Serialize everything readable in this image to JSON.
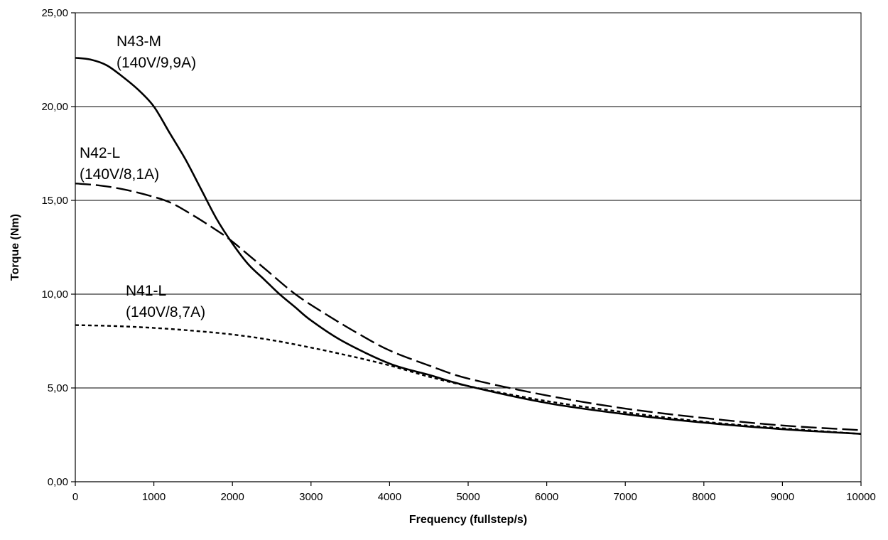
{
  "chart_data": {
    "type": "line",
    "title": "",
    "xlabel": "Frequency (fullstep/s)",
    "ylabel": "Torque (Nm)",
    "xlim": [
      0,
      10000
    ],
    "ylim": [
      0,
      25
    ],
    "x_ticks": [
      0,
      1000,
      2000,
      3000,
      4000,
      5000,
      6000,
      7000,
      8000,
      9000,
      10000
    ],
    "x_tick_labels": [
      "0",
      "1000",
      "2000",
      "3000",
      "4000",
      "5000",
      "6000",
      "7000",
      "8000",
      "9000",
      "10000"
    ],
    "y_ticks": [
      0,
      5,
      10,
      15,
      20,
      25
    ],
    "y_tick_labels": [
      "0,00",
      "5,00",
      "10,00",
      "15,00",
      "20,00",
      "25,00"
    ],
    "grid": "horizontal",
    "legend": "inline labels",
    "series": [
      {
        "id": "n43m",
        "label_lines": [
          "N43-M",
          "(140V/9,9A)"
        ],
        "style": "solid",
        "color": "#000000",
        "x": [
          0,
          200,
          400,
          600,
          800,
          1000,
          1200,
          1400,
          1600,
          1800,
          2000,
          2200,
          2400,
          2600,
          2800,
          3000,
          3400,
          4000,
          4500,
          5000,
          6000,
          7000,
          8000,
          9000,
          10000
        ],
        "y": [
          22.6,
          22.5,
          22.2,
          21.6,
          20.9,
          20.0,
          18.6,
          17.2,
          15.6,
          14.0,
          12.7,
          11.6,
          10.8,
          10.0,
          9.3,
          8.6,
          7.5,
          6.3,
          5.7,
          5.1,
          4.2,
          3.6,
          3.15,
          2.8,
          2.55
        ]
      },
      {
        "id": "n42l",
        "label_lines": [
          "N42-L",
          "(140V/8,1A)"
        ],
        "style": "long-dash",
        "color": "#000000",
        "x": [
          0,
          300,
          600,
          900,
          1200,
          1500,
          1800,
          2000,
          2400,
          2800,
          3200,
          3600,
          4000,
          4500,
          5000,
          6000,
          7000,
          8000,
          9000,
          10000
        ],
        "y": [
          15.9,
          15.8,
          15.6,
          15.3,
          14.9,
          14.2,
          13.4,
          12.8,
          11.4,
          10.0,
          8.9,
          7.9,
          7.0,
          6.2,
          5.5,
          4.6,
          3.9,
          3.4,
          3.0,
          2.75
        ]
      },
      {
        "id": "n41l",
        "label_lines": [
          "N41-L",
          "(140V/8,7A)"
        ],
        "style": "short-dash",
        "color": "#000000",
        "x": [
          0,
          500,
          1000,
          1500,
          2000,
          2500,
          3000,
          3500,
          4000,
          4500,
          5000,
          6000,
          7000,
          8000,
          9000,
          10000
        ],
        "y": [
          8.35,
          8.3,
          8.2,
          8.05,
          7.85,
          7.55,
          7.15,
          6.7,
          6.2,
          5.6,
          5.1,
          4.3,
          3.7,
          3.2,
          2.85,
          2.55
        ]
      }
    ]
  }
}
